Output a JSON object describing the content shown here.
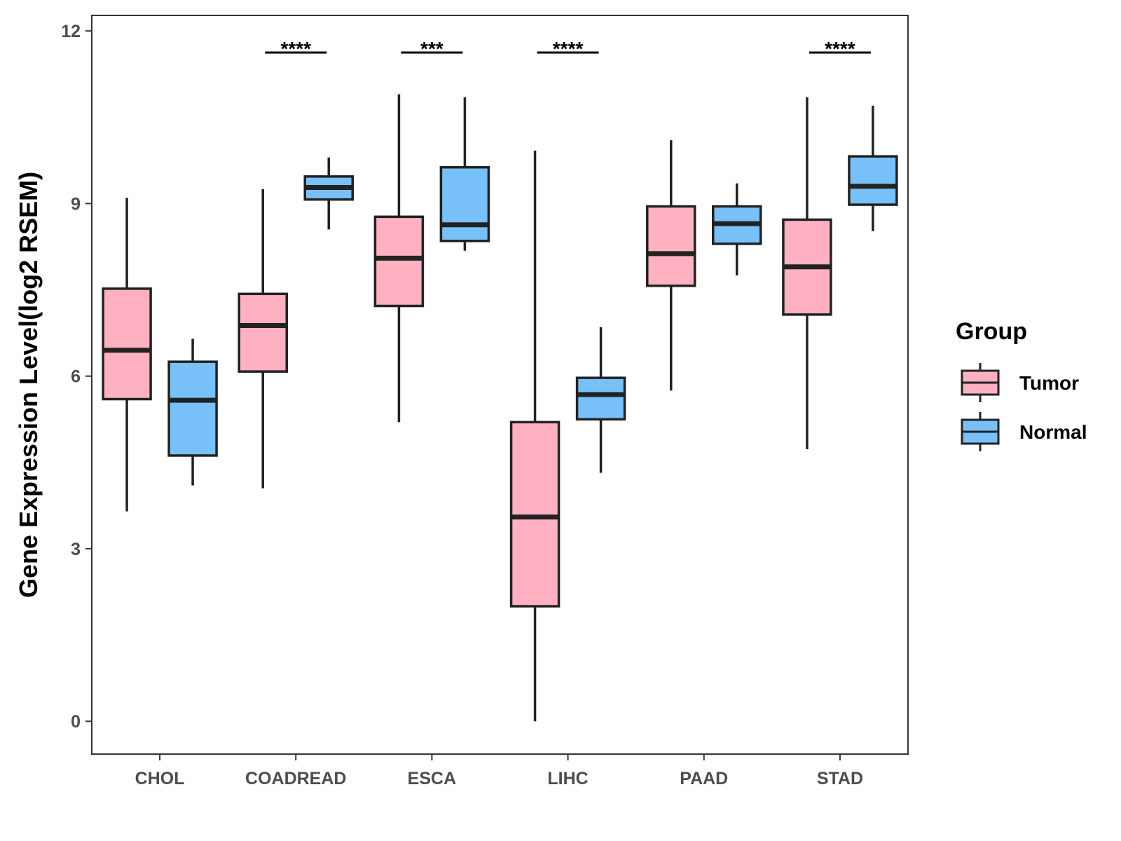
{
  "chart_data": {
    "type": "boxplot",
    "title": "",
    "xlabel": "",
    "ylabel": "Gene Expression Level(log2 RSEM)",
    "ylim": [
      -0.57,
      12.27
    ],
    "yticks": [
      0,
      3,
      6,
      9,
      12
    ],
    "categories": [
      "CHOL",
      "COADREAD",
      "ESCA",
      "LIHC",
      "PAAD",
      "STAD"
    ],
    "series": [
      {
        "name": "Tumor",
        "color": "#ffb0c1",
        "boxes": [
          {
            "min": 3.65,
            "q1": 5.6,
            "median": 6.45,
            "q3": 7.52,
            "max": 9.1
          },
          {
            "min": 4.05,
            "q1": 6.08,
            "median": 6.88,
            "q3": 7.43,
            "max": 9.25
          },
          {
            "min": 5.2,
            "q1": 7.22,
            "median": 8.05,
            "q3": 8.77,
            "max": 10.9
          },
          {
            "min": 0.0,
            "q1": 2.0,
            "median": 3.55,
            "q3": 5.2,
            "max": 9.92
          },
          {
            "min": 5.75,
            "q1": 7.57,
            "median": 8.13,
            "q3": 8.95,
            "max": 10.1
          },
          {
            "min": 4.73,
            "q1": 7.07,
            "median": 7.9,
            "q3": 8.72,
            "max": 10.85
          }
        ]
      },
      {
        "name": "Normal",
        "color": "#77c1f8",
        "boxes": [
          {
            "min": 4.1,
            "q1": 4.62,
            "median": 5.58,
            "q3": 6.25,
            "max": 6.65
          },
          {
            "min": 8.55,
            "q1": 9.07,
            "median": 9.28,
            "q3": 9.47,
            "max": 9.8
          },
          {
            "min": 8.18,
            "q1": 8.35,
            "median": 8.63,
            "q3": 9.63,
            "max": 10.85
          },
          {
            "min": 4.32,
            "q1": 5.25,
            "median": 5.68,
            "q3": 5.97,
            "max": 6.85
          },
          {
            "min": 7.75,
            "q1": 8.3,
            "median": 8.65,
            "q3": 8.95,
            "max": 9.35
          },
          {
            "min": 8.52,
            "q1": 8.98,
            "median": 9.3,
            "q3": 9.82,
            "max": 10.7
          }
        ]
      }
    ],
    "significance": [
      {
        "category": "COADREAD",
        "label": "****"
      },
      {
        "category": "ESCA",
        "label": "***"
      },
      {
        "category": "LIHC",
        "label": "****"
      },
      {
        "category": "STAD",
        "label": "****"
      }
    ],
    "legend": {
      "title": "Group",
      "position": "right",
      "entries": [
        "Tumor",
        "Normal"
      ]
    },
    "grid": false
  }
}
